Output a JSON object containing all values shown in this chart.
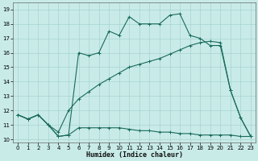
{
  "background_color": "#c8ebe8",
  "grid_color": "#a8d4d0",
  "line_color": "#1a6b5a",
  "xlabel": "Humidex (Indice chaleur)",
  "xlim": [
    -0.5,
    23.5
  ],
  "ylim": [
    9.8,
    19.5
  ],
  "x_ticks": [
    0,
    1,
    2,
    3,
    4,
    5,
    6,
    7,
    8,
    9,
    10,
    11,
    12,
    13,
    14,
    15,
    16,
    17,
    18,
    19,
    20,
    21,
    22,
    23
  ],
  "y_ticks": [
    10,
    11,
    12,
    13,
    14,
    15,
    16,
    17,
    18,
    19
  ],
  "curve1_x": [
    0,
    1,
    2,
    3,
    4,
    5,
    6,
    7,
    8,
    9,
    10,
    11,
    12,
    13,
    14,
    15,
    16,
    17,
    18,
    19,
    20,
    21,
    22,
    23
  ],
  "curve1_y": [
    11.7,
    11.4,
    11.7,
    11.0,
    10.2,
    10.3,
    16.0,
    15.8,
    16.0,
    17.5,
    17.2,
    18.5,
    18.0,
    18.0,
    18.0,
    18.6,
    18.7,
    17.2,
    17.0,
    16.5,
    16.5,
    13.4,
    11.5,
    10.2
  ],
  "curve2_x": [
    0,
    1,
    2,
    3,
    4,
    5,
    6,
    7,
    8,
    9,
    10,
    11,
    12,
    13,
    14,
    15,
    16,
    17,
    18,
    19,
    20,
    21,
    22,
    23
  ],
  "curve2_y": [
    11.7,
    11.4,
    11.7,
    11.0,
    10.5,
    12.0,
    12.8,
    13.3,
    13.8,
    14.2,
    14.6,
    15.0,
    15.2,
    15.4,
    15.6,
    15.9,
    16.2,
    16.5,
    16.7,
    16.8,
    16.7,
    13.4,
    11.5,
    10.2
  ],
  "curve3_x": [
    0,
    1,
    2,
    3,
    4,
    5,
    6,
    7,
    8,
    9,
    10,
    11,
    12,
    13,
    14,
    15,
    16,
    17,
    18,
    19,
    20,
    21,
    22,
    23
  ],
  "curve3_y": [
    11.7,
    11.4,
    11.7,
    11.0,
    10.2,
    10.3,
    10.8,
    10.8,
    10.8,
    10.8,
    10.8,
    10.7,
    10.6,
    10.6,
    10.5,
    10.5,
    10.4,
    10.4,
    10.3,
    10.3,
    10.3,
    10.3,
    10.2,
    10.2
  ],
  "figwidth": 3.2,
  "figheight": 2.0,
  "dpi": 100
}
